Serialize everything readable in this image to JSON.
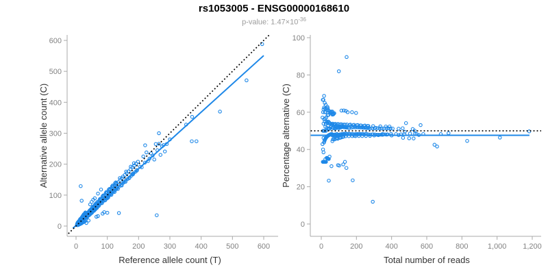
{
  "header": {
    "title": "rs1053005 - ENSG00000168610",
    "pvalue_prefix": "p-value: 1.47×10",
    "pvalue_exponent": "-36"
  },
  "colors": {
    "point": "#1E88E8",
    "regression_line": "#1E88E8",
    "identity_line": "#000000",
    "axis": "#A9A9A9",
    "tick_label": "#828282",
    "axis_title": "#333333",
    "title": "#000000",
    "subtitle": "#9C9C9C"
  },
  "chart_data": {
    "type": "scatter",
    "figure_title": "rs1053005 - ENSG00000168610",
    "figure_subtitle": "p-value: 1.47×10^-36",
    "points_unit": "[reference_allele_count_T, alternative_allele_count_C] per sample; right panel derived as x=T+C, y=C/(T+C)*100",
    "charts": [
      {
        "id": "left",
        "type": "scatter",
        "xlabel": "Reference allele count (T)",
        "ylabel": "Alternative allele count (C)",
        "xlim": [
          0,
          600
        ],
        "ylim": [
          0,
          600
        ],
        "xtick_values": [
          0,
          100,
          200,
          300,
          400,
          500,
          600
        ],
        "xtick_labels": [
          "0",
          "100",
          "200",
          "300",
          "400",
          "500",
          "600"
        ],
        "ytick_values": [
          0,
          100,
          200,
          300,
          400,
          500,
          600
        ],
        "ytick_labels": [
          "0",
          "100",
          "200",
          "300",
          "400",
          "500",
          "600"
        ],
        "grid": false,
        "point_map": {
          "x": "T",
          "y": "C"
        },
        "lines": [
          {
            "name": "regression-line",
            "style": "solid",
            "color": "#1E88E8",
            "width": 2,
            "dash": null,
            "from": [
              -10,
              -7
            ],
            "to": [
              600,
              551
            ]
          },
          {
            "name": "identity-line",
            "style": "dotted",
            "color": "#000000",
            "width": 1.8,
            "dash": "1.8 3.2",
            "from": [
              -40,
              -40
            ],
            "to": [
              660,
              660
            ]
          }
        ]
      },
      {
        "id": "right",
        "type": "scatter",
        "xlabel": "Total number of reads",
        "ylabel": "Percentage alternative (C)",
        "xlim": [
          0,
          1200
        ],
        "ylim": [
          0,
          100
        ],
        "xtick_values": [
          0,
          200,
          400,
          600,
          800,
          1000,
          1200
        ],
        "xtick_labels": [
          "0",
          "200",
          "400",
          "600",
          "800",
          "1,000",
          "1,200"
        ],
        "ytick_values": [
          0,
          20,
          40,
          60,
          80,
          100
        ],
        "ytick_labels": [
          "0",
          "20",
          "40",
          "60",
          "80",
          "100"
        ],
        "grid": false,
        "point_map": {
          "x": "T+C",
          "y": "C/(T+C)*100"
        },
        "lines": [
          {
            "name": "mean-percentage-line",
            "style": "solid",
            "color": "#1E88E8",
            "width": 2,
            "dash": null,
            "from": [
              -60,
              47.6
            ],
            "to": [
              1184,
              47.6
            ]
          },
          {
            "name": "expected-50pct-line",
            "style": "dotted",
            "color": "#000000",
            "width": 1.8,
            "dash": "1.8 3.2",
            "from": [
              -60,
              50
            ],
            "to": [
              1255,
              50
            ]
          }
        ]
      }
    ],
    "allele_counts": [
      [
        3,
        4
      ],
      [
        4,
        3
      ],
      [
        4,
        6
      ],
      [
        5,
        5
      ],
      [
        5,
        8
      ],
      [
        6,
        4
      ],
      [
        6,
        7
      ],
      [
        7,
        6
      ],
      [
        7,
        9
      ],
      [
        8,
        5
      ],
      [
        8,
        8
      ],
      [
        8,
        13
      ],
      [
        9,
        7
      ],
      [
        9,
        11
      ],
      [
        10,
        8
      ],
      [
        10,
        10
      ],
      [
        10,
        15
      ],
      [
        11,
        9
      ],
      [
        11,
        12
      ],
      [
        12,
        10
      ],
      [
        12,
        14
      ],
      [
        12,
        19
      ],
      [
        13,
        11
      ],
      [
        13,
        13
      ],
      [
        14,
        12
      ],
      [
        14,
        17
      ],
      [
        14,
        23
      ],
      [
        15,
        13
      ],
      [
        15,
        16
      ],
      [
        16,
        14
      ],
      [
        16,
        19
      ],
      [
        17,
        15
      ],
      [
        17,
        20
      ],
      [
        18,
        16
      ],
      [
        18,
        22
      ],
      [
        19,
        17
      ],
      [
        19,
        20
      ],
      [
        20,
        18
      ],
      [
        20,
        24
      ],
      [
        20,
        30
      ],
      [
        21,
        19
      ],
      [
        21,
        22
      ],
      [
        22,
        20
      ],
      [
        22,
        26
      ],
      [
        23,
        21
      ],
      [
        23,
        24
      ],
      [
        24,
        22
      ],
      [
        24,
        28
      ],
      [
        25,
        23
      ],
      [
        25,
        27
      ],
      [
        25,
        38
      ],
      [
        26,
        24
      ],
      [
        26,
        29
      ],
      [
        27,
        25
      ],
      [
        27,
        31
      ],
      [
        28,
        26
      ],
      [
        28,
        32
      ],
      [
        29,
        27
      ],
      [
        29,
        33
      ],
      [
        30,
        28
      ],
      [
        30,
        35
      ],
      [
        30,
        44
      ],
      [
        5,
        11
      ],
      [
        7,
        13
      ],
      [
        9,
        16
      ],
      [
        11,
        18
      ],
      [
        13,
        22
      ],
      [
        16,
        25
      ],
      [
        19,
        29
      ],
      [
        22,
        33
      ],
      [
        26,
        37
      ],
      [
        28,
        40
      ],
      [
        6,
        10
      ],
      [
        8,
        12
      ],
      [
        10,
        13
      ],
      [
        12,
        16
      ],
      [
        15,
        21
      ],
      [
        17,
        24
      ],
      [
        21,
        31
      ],
      [
        23,
        35
      ],
      [
        27,
        39
      ],
      [
        29,
        42
      ],
      [
        4,
        8
      ],
      [
        3,
        6
      ],
      [
        10,
        5
      ],
      [
        12,
        6
      ],
      [
        15,
        8
      ],
      [
        18,
        9
      ],
      [
        20,
        11
      ],
      [
        24,
        13
      ],
      [
        28,
        15
      ],
      [
        30,
        17
      ],
      [
        8,
        4
      ],
      [
        6,
        3
      ],
      [
        16,
        8
      ],
      [
        22,
        12
      ],
      [
        26,
        14
      ],
      [
        14,
        7
      ],
      [
        31,
        29
      ],
      [
        32,
        34
      ],
      [
        33,
        30
      ],
      [
        34,
        36
      ],
      [
        35,
        32
      ],
      [
        35,
        40
      ],
      [
        36,
        33
      ],
      [
        37,
        39
      ],
      [
        38,
        35
      ],
      [
        39,
        41
      ],
      [
        40,
        36
      ],
      [
        40,
        44
      ],
      [
        41,
        38
      ],
      [
        42,
        45
      ],
      [
        43,
        39
      ],
      [
        44,
        47
      ],
      [
        45,
        41
      ],
      [
        45,
        50
      ],
      [
        46,
        43
      ],
      [
        47,
        50
      ],
      [
        48,
        44
      ],
      [
        49,
        52
      ],
      [
        50,
        46
      ],
      [
        50,
        55
      ],
      [
        51,
        47
      ],
      [
        52,
        56
      ],
      [
        53,
        48
      ],
      [
        54,
        58
      ],
      [
        55,
        50
      ],
      [
        55,
        61
      ],
      [
        56,
        52
      ],
      [
        57,
        62
      ],
      [
        58,
        53
      ],
      [
        59,
        64
      ],
      [
        60,
        55
      ],
      [
        60,
        66
      ],
      [
        61,
        57
      ],
      [
        62,
        67
      ],
      [
        63,
        58
      ],
      [
        64,
        69
      ],
      [
        65,
        60
      ],
      [
        65,
        71
      ],
      [
        66,
        62
      ],
      [
        67,
        72
      ],
      [
        68,
        63
      ],
      [
        69,
        74
      ],
      [
        70,
        65
      ],
      [
        70,
        76
      ],
      [
        33,
        38
      ],
      [
        37,
        43
      ],
      [
        41,
        47
      ],
      [
        44,
        51
      ],
      [
        48,
        55
      ],
      [
        52,
        60
      ],
      [
        56,
        64
      ],
      [
        61,
        70
      ],
      [
        64,
        73
      ],
      [
        68,
        78
      ],
      [
        36,
        30
      ],
      [
        42,
        35
      ],
      [
        46,
        39
      ],
      [
        51,
        43
      ],
      [
        57,
        49
      ],
      [
        62,
        54
      ],
      [
        66,
        58
      ],
      [
        39,
        33
      ],
      [
        49,
        42
      ],
      [
        59,
        51
      ],
      [
        67,
        59
      ],
      [
        35,
        28
      ],
      [
        60,
        90
      ],
      [
        50,
        78
      ],
      [
        70,
        105
      ],
      [
        80,
        118
      ],
      [
        45,
        70
      ],
      [
        55,
        85
      ],
      [
        40,
        18
      ],
      [
        70,
        32
      ],
      [
        100,
        43
      ],
      [
        90,
        45
      ],
      [
        65,
        30
      ],
      [
        85,
        40
      ],
      [
        72,
        68
      ],
      [
        74,
        79
      ],
      [
        76,
        71
      ],
      [
        78,
        83
      ],
      [
        80,
        75
      ],
      [
        80,
        88
      ],
      [
        82,
        77
      ],
      [
        84,
        90
      ],
      [
        86,
        80
      ],
      [
        88,
        95
      ],
      [
        90,
        84
      ],
      [
        90,
        99
      ],
      [
        92,
        86
      ],
      [
        94,
        101
      ],
      [
        96,
        89
      ],
      [
        98,
        106
      ],
      [
        100,
        93
      ],
      [
        100,
        108
      ],
      [
        102,
        95
      ],
      [
        104,
        112
      ],
      [
        106,
        99
      ],
      [
        108,
        116
      ],
      [
        110,
        102
      ],
      [
        110,
        119
      ],
      [
        112,
        105
      ],
      [
        114,
        122
      ],
      [
        116,
        108
      ],
      [
        118,
        126
      ],
      [
        120,
        112
      ],
      [
        120,
        129
      ],
      [
        122,
        114
      ],
      [
        124,
        132
      ],
      [
        126,
        117
      ],
      [
        128,
        136
      ],
      [
        130,
        121
      ],
      [
        130,
        139
      ],
      [
        75,
        85
      ],
      [
        85,
        96
      ],
      [
        95,
        107
      ],
      [
        105,
        118
      ],
      [
        115,
        128
      ],
      [
        125,
        139
      ],
      [
        73,
        65
      ],
      [
        83,
        74
      ],
      [
        93,
        83
      ],
      [
        103,
        92
      ],
      [
        113,
        101
      ],
      [
        123,
        110
      ],
      [
        77,
        88
      ],
      [
        87,
        99
      ],
      [
        97,
        110
      ],
      [
        107,
        120
      ],
      [
        117,
        131
      ],
      [
        127,
        141
      ],
      [
        99,
        89
      ],
      [
        132,
        124
      ],
      [
        135,
        142
      ],
      [
        138,
        128
      ],
      [
        141,
        149
      ],
      [
        144,
        133
      ],
      [
        147,
        155
      ],
      [
        150,
        139
      ],
      [
        150,
        160
      ],
      [
        153,
        142
      ],
      [
        156,
        165
      ],
      [
        159,
        147
      ],
      [
        162,
        171
      ],
      [
        165,
        152
      ],
      [
        168,
        177
      ],
      [
        171,
        157
      ],
      [
        174,
        183
      ],
      [
        177,
        163
      ],
      [
        180,
        168
      ],
      [
        180,
        190
      ],
      [
        183,
        170
      ],
      [
        186,
        196
      ],
      [
        189,
        175
      ],
      [
        192,
        202
      ],
      [
        195,
        181
      ],
      [
        198,
        208
      ],
      [
        134,
        120
      ],
      [
        146,
        131
      ],
      [
        158,
        143
      ],
      [
        170,
        155
      ],
      [
        182,
        167
      ],
      [
        194,
        179
      ],
      [
        140,
        155
      ],
      [
        160,
        176
      ],
      [
        185,
        203
      ],
      [
        175,
        192
      ],
      [
        205,
        192
      ],
      [
        210,
        190
      ],
      [
        215,
        225
      ],
      [
        220,
        205
      ],
      [
        225,
        238
      ],
      [
        230,
        210
      ],
      [
        235,
        218
      ],
      [
        240,
        235
      ],
      [
        245,
        228
      ],
      [
        250,
        215
      ],
      [
        255,
        265
      ],
      [
        260,
        245
      ],
      [
        265,
        300
      ],
      [
        270,
        230
      ],
      [
        275,
        258
      ],
      [
        280,
        262
      ],
      [
        290,
        265
      ],
      [
        300,
        280
      ],
      [
        221,
        261
      ],
      [
        284,
        241
      ],
      [
        265,
        266
      ],
      [
        352,
        328
      ],
      [
        371,
        353
      ],
      [
        370,
        274
      ],
      [
        385,
        274
      ],
      [
        460,
        370
      ],
      [
        545,
        471
      ],
      [
        595,
        588
      ],
      [
        15,
        129
      ],
      [
        18,
        82
      ],
      [
        137,
        42
      ],
      [
        33,
        10
      ],
      [
        258,
        35
      ]
    ]
  }
}
